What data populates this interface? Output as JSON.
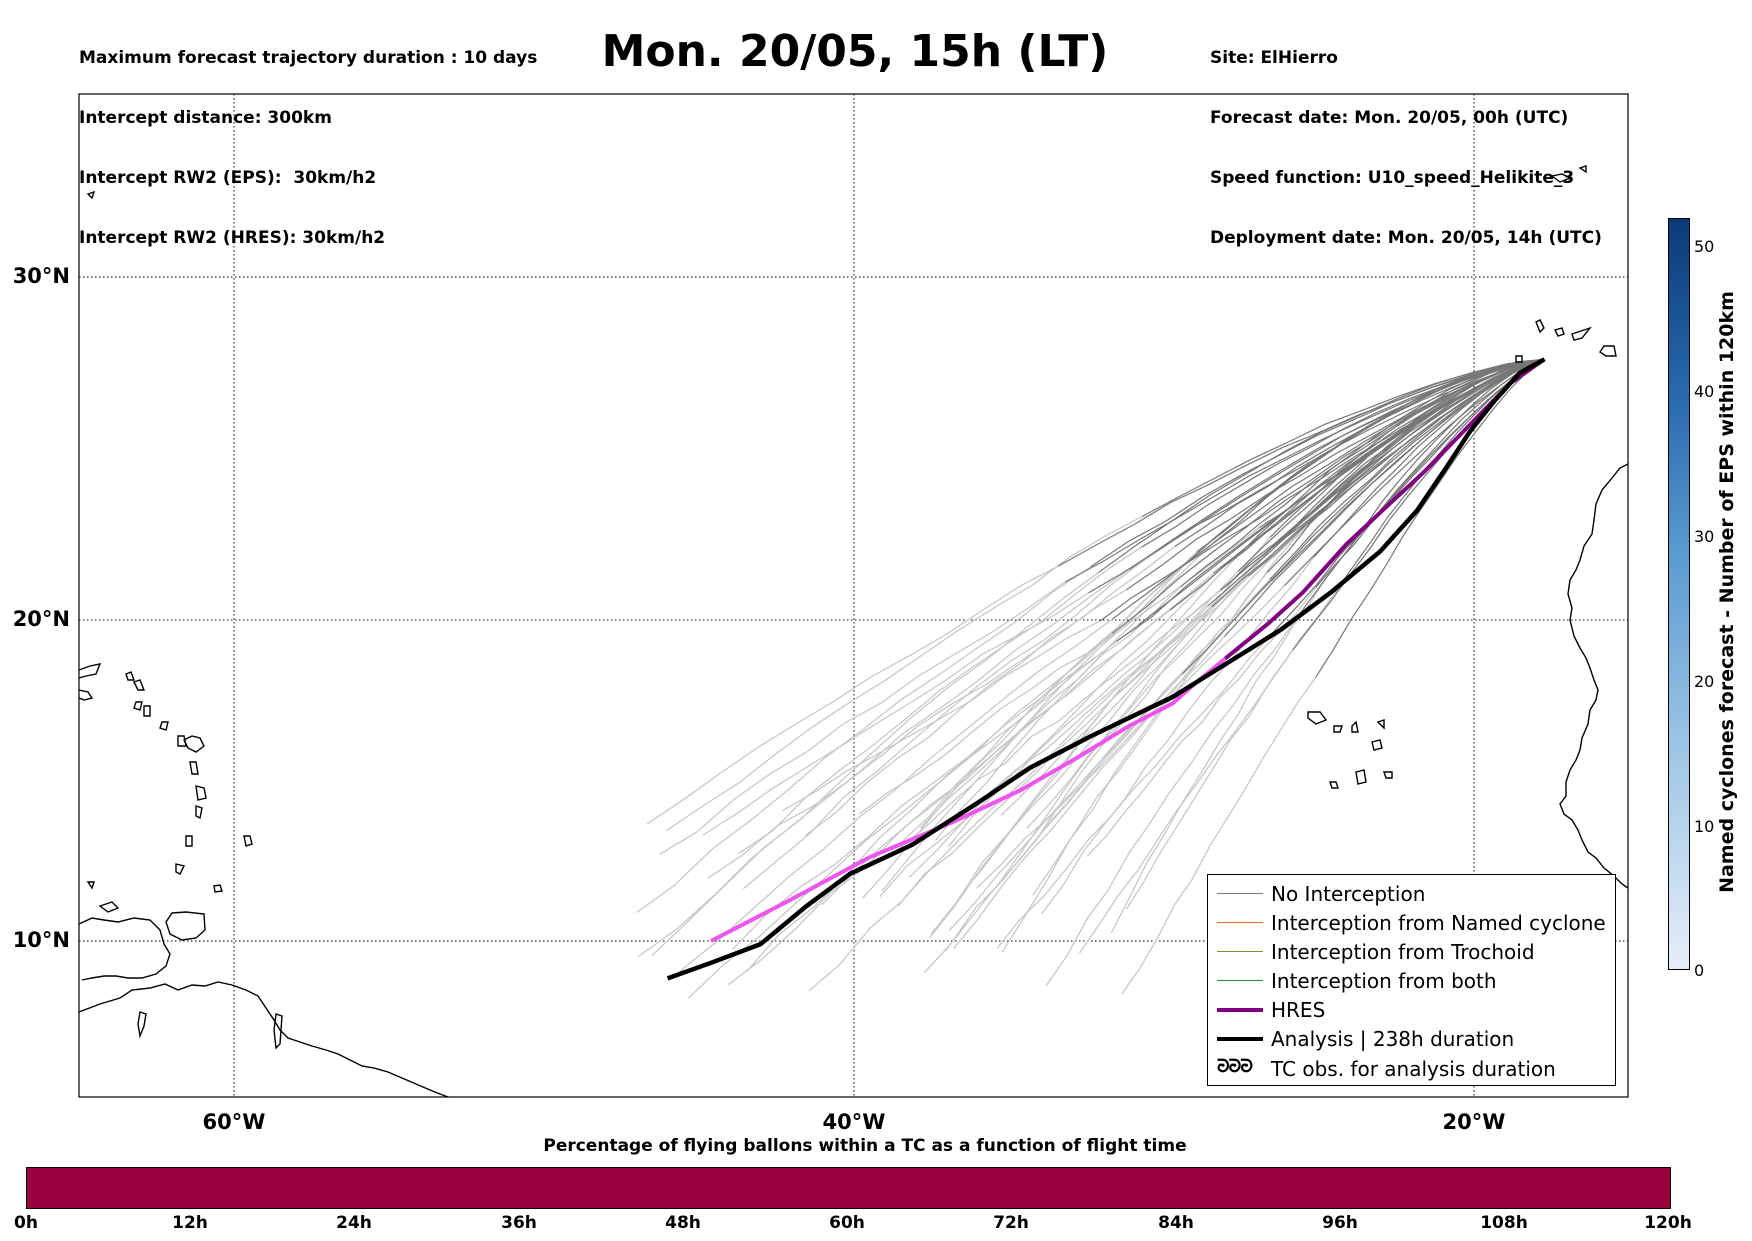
{
  "header": {
    "left_lines": [
      "Maximum forecast trajectory duration : 10 days",
      "Intercept distance: 300km",
      "Intercept RW2 (EPS):  30km/h2",
      "Intercept RW2 (HRES): 30km/h2"
    ],
    "title": "Mon. 20/05, 15h (LT)",
    "right_lines": [
      "Site: ElHierro",
      "Forecast date: Mon. 20/05, 00h (UTC)",
      "Speed function: U10_speed_Helikite_3",
      "Deployment date: Mon. 20/05, 14h (UTC)"
    ]
  },
  "map": {
    "lon_range": [
      -65,
      -15
    ],
    "lat_range": [
      5,
      34.3
    ],
    "lat_labels": [
      "30°N",
      "20°N",
      "10°N"
    ],
    "lon_labels": [
      "60°W",
      "40°W",
      "20°W"
    ],
    "colors": {
      "no_interception": "#777777",
      "ensemble_light": "#c8c8c8",
      "hres": "#800080",
      "hres_light": "#ee55ee",
      "analysis": "#000000",
      "coastline": "#000000"
    },
    "hres_track": [
      [
        -17.7,
        27.6
      ],
      [
        -18.8,
        26.9
      ],
      [
        -20.2,
        25.6
      ],
      [
        -21.6,
        24.3
      ],
      [
        -22.8,
        23.3
      ],
      [
        -24.1,
        22.2
      ],
      [
        -25.5,
        20.8
      ],
      [
        -26.6,
        19.9
      ],
      [
        -28.0,
        18.8
      ],
      [
        -29.0,
        18.0
      ],
      [
        -29.7,
        17.4
      ],
      [
        -31.1,
        16.7
      ],
      [
        -32.8,
        15.7
      ],
      [
        -34.6,
        14.7
      ],
      [
        -36.8,
        13.7
      ],
      [
        -39.5,
        12.6
      ],
      [
        -42.0,
        11.3
      ],
      [
        -44.6,
        10.0
      ]
    ],
    "analysis_track": [
      [
        -17.7,
        27.6
      ],
      [
        -18.5,
        27.2
      ],
      [
        -19.3,
        26.4
      ],
      [
        -20.1,
        25.5
      ],
      [
        -20.9,
        24.4
      ],
      [
        -21.8,
        23.2
      ],
      [
        -23.0,
        22.0
      ],
      [
        -24.6,
        20.8
      ],
      [
        -26.2,
        19.7
      ],
      [
        -27.7,
        18.8
      ],
      [
        -29.7,
        17.6
      ],
      [
        -32.3,
        16.4
      ],
      [
        -34.3,
        15.4
      ],
      [
        -36.0,
        14.3
      ],
      [
        -38.1,
        13.0
      ],
      [
        -40.1,
        12.1
      ],
      [
        -41.5,
        11.1
      ],
      [
        -43.0,
        9.9
      ],
      [
        -44.6,
        9.3
      ],
      [
        -46.0,
        8.8
      ]
    ]
  },
  "legend": {
    "items": [
      {
        "label": "No Interception",
        "color": "#808080",
        "kind": "thin"
      },
      {
        "label": "Interception from Named cyclone",
        "color": "#ff6a2a",
        "kind": "thin"
      },
      {
        "label": "Interception from Trochoid",
        "color": "#8a8a2a",
        "kind": "thin"
      },
      {
        "label": "Interception from both",
        "color": "#2a8a2a",
        "kind": "thin"
      },
      {
        "label": "HRES",
        "color": "#800080",
        "kind": "thick"
      },
      {
        "label": "Analysis | 238h duration",
        "color": "#000000",
        "kind": "thick"
      },
      {
        "label": "TC obs. for analysis duration",
        "color": "#000000",
        "kind": "symbol",
        "symbol": "ᘒᘒᘒ"
      }
    ]
  },
  "colorbar_right": {
    "label": "Named cyclones forecast - Number of EPS within 120km",
    "ticks": [
      "50",
      "40",
      "30",
      "20",
      "10",
      "0"
    ],
    "top_color": "#0b3a78",
    "bottom_color": "#e6eef9"
  },
  "colorbar_bottom": {
    "title": "Percentage of flying ballons within a TC as a function of flight time",
    "color": "#9b003e",
    "ticks": [
      "0h",
      "12h",
      "24h",
      "36h",
      "48h",
      "60h",
      "72h",
      "84h",
      "96h",
      "108h",
      "120h"
    ]
  }
}
